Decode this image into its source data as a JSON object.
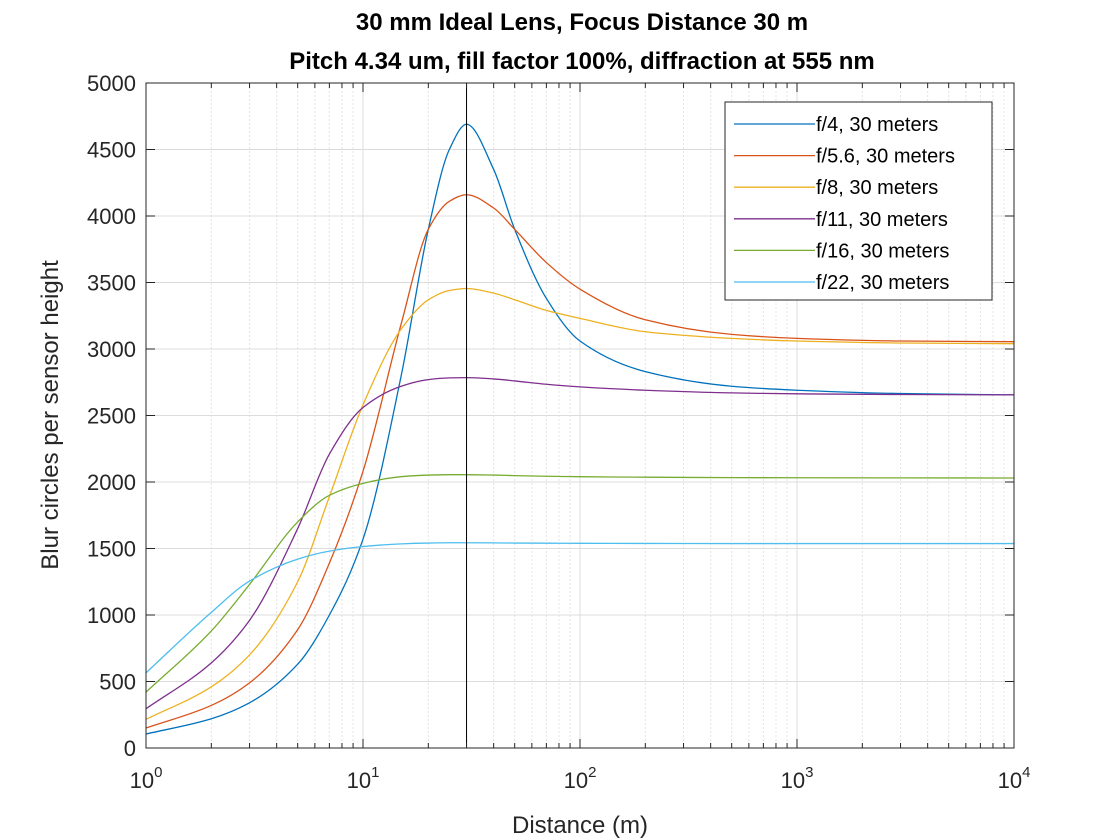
{
  "chart_data": {
    "type": "line",
    "title": [
      "30 mm Ideal Lens, Focus Distance 30 m",
      "Pitch 4.34 um, fill factor 100%, diffraction at 555 nm"
    ],
    "xlabel": "Distance (m)",
    "ylabel": "Blur circles per sensor height",
    "xscale": "log",
    "xlim": [
      1,
      10000
    ],
    "ylim": [
      0,
      5000
    ],
    "x_tick_labels": [
      {
        "base": "10",
        "exp": "0"
      },
      {
        "base": "10",
        "exp": "1"
      },
      {
        "base": "10",
        "exp": "2"
      },
      {
        "base": "10",
        "exp": "3"
      },
      {
        "base": "10",
        "exp": "4"
      }
    ],
    "y_tick_labels": [
      "0",
      "500",
      "1000",
      "1500",
      "2000",
      "2500",
      "3000",
      "3500",
      "4000",
      "4500",
      "5000"
    ],
    "grid": true,
    "legend_position": "top-right",
    "focus_line_x": 30,
    "x": [
      1,
      2,
      3,
      5,
      7,
      10,
      15,
      20,
      25,
      30,
      40,
      50,
      70,
      100,
      200,
      500,
      1000,
      3000,
      10000
    ],
    "series": [
      {
        "name": "f/4, 30 meters",
        "color": "#0072BD",
        "values": [
          105,
          220,
          340,
          630,
          1000,
          1570,
          2800,
          3900,
          4500,
          4690,
          4350,
          3900,
          3380,
          3060,
          2830,
          2720,
          2690,
          2665,
          2655
        ]
      },
      {
        "name": "f/5.6, 30 meters",
        "color": "#D95319",
        "values": [
          150,
          320,
          490,
          890,
          1390,
          2080,
          3190,
          3900,
          4110,
          4160,
          4060,
          3900,
          3650,
          3450,
          3220,
          3110,
          3080,
          3060,
          3055
        ]
      },
      {
        "name": "f/8, 30 meters",
        "color": "#EDB120",
        "values": [
          215,
          460,
          700,
          1250,
          1890,
          2580,
          3150,
          3370,
          3440,
          3455,
          3420,
          3370,
          3290,
          3230,
          3130,
          3080,
          3060,
          3045,
          3040
        ]
      },
      {
        "name": "f/11, 30 meters",
        "color": "#7E2F8E",
        "values": [
          295,
          640,
          960,
          1650,
          2210,
          2560,
          2720,
          2770,
          2783,
          2785,
          2775,
          2760,
          2735,
          2715,
          2690,
          2670,
          2663,
          2658,
          2655
        ]
      },
      {
        "name": "f/16, 30 meters",
        "color": "#77AC30",
        "values": [
          420,
          880,
          1230,
          1700,
          1900,
          1990,
          2040,
          2052,
          2055,
          2055,
          2052,
          2048,
          2043,
          2040,
          2036,
          2033,
          2032,
          2031,
          2030
        ]
      },
      {
        "name": "f/22, 30 meters",
        "color": "#4DBEEE",
        "values": [
          565,
          1020,
          1255,
          1420,
          1480,
          1515,
          1535,
          1541,
          1543,
          1543,
          1542,
          1541,
          1540,
          1539,
          1538,
          1537,
          1537,
          1537,
          1537
        ]
      }
    ]
  }
}
